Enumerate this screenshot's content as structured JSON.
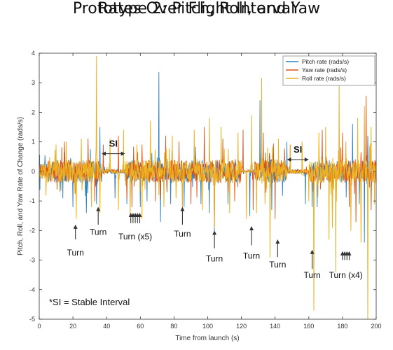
{
  "chart_data": {
    "type": "line",
    "title_line1": "Prototype 2: Pitch, Roll, and Yaw",
    "title_line2": "Rates Over Flight Interval",
    "xlabel": "Time from launch (s)",
    "ylabel": "Pitch, Roll, and Yaw Rate of Change (rads/s)",
    "xlim": [
      0,
      200
    ],
    "ylim": [
      -5,
      4
    ],
    "xticks": [
      0,
      20,
      40,
      60,
      80,
      100,
      120,
      140,
      160,
      180,
      200
    ],
    "yticks": [
      4,
      3,
      2,
      1,
      0,
      -1,
      -2,
      -3,
      -4,
      -5
    ],
    "legend_position": "top-right",
    "series": [
      {
        "name": "Pitch rate (rads/s)",
        "color": "#2f7fc1",
        "spikes": [
          [
            14,
            -0.9
          ],
          [
            20,
            -1.2
          ],
          [
            28,
            -1.4
          ],
          [
            34,
            -1.1
          ],
          [
            36,
            1.5
          ],
          [
            45,
            -0.9
          ],
          [
            52,
            -1.1
          ],
          [
            60,
            -1.2
          ],
          [
            64,
            -1.0
          ],
          [
            71,
            3.35
          ],
          [
            72,
            -1.7
          ],
          [
            78,
            -1.1
          ],
          [
            86,
            -1.2
          ],
          [
            96,
            -1.1
          ],
          [
            101,
            -1.4
          ],
          [
            104,
            -2.0
          ],
          [
            112,
            -1.1
          ],
          [
            125,
            -1.5
          ],
          [
            129,
            -1.0
          ],
          [
            131,
            2.4
          ],
          [
            138,
            -1.3
          ],
          [
            147,
            1.0
          ],
          [
            158,
            -1.1
          ],
          [
            162,
            -1.2
          ],
          [
            165,
            -1.2
          ],
          [
            176,
            -1.8
          ],
          [
            186,
            1.6
          ],
          [
            190,
            -1.1
          ],
          [
            193,
            -2.4
          ],
          [
            195,
            1.2
          ]
        ]
      },
      {
        "name": "Yaw rate (rads/s)",
        "color": "#d9541a",
        "spikes": [
          [
            15,
            1.0
          ],
          [
            22,
            -0.9
          ],
          [
            29,
            1.1
          ],
          [
            33,
            -1.0
          ],
          [
            38,
            0.9
          ],
          [
            47,
            1.2
          ],
          [
            55,
            -1.2
          ],
          [
            61,
            0.9
          ],
          [
            69,
            -1.0
          ],
          [
            75,
            1.2
          ],
          [
            83,
            1.0
          ],
          [
            90,
            -1.1
          ],
          [
            98,
            1.5
          ],
          [
            104,
            -1.9
          ],
          [
            109,
            1.1
          ],
          [
            116,
            -1.0
          ],
          [
            121,
            1.4
          ],
          [
            127,
            -1.3
          ],
          [
            133,
            1.3
          ],
          [
            140,
            -1.6
          ],
          [
            149,
            0.9
          ],
          [
            163,
            -1.3
          ],
          [
            168,
            1.4
          ],
          [
            174,
            -1.6
          ],
          [
            180,
            1.3
          ],
          [
            184,
            -1.2
          ],
          [
            188,
            -1.7
          ],
          [
            194,
            2.55
          ],
          [
            197,
            -1.3
          ]
        ]
      },
      {
        "name": "Roll rate (rads/s)",
        "color": "#edb120",
        "spikes": [
          [
            4,
            -0.8
          ],
          [
            10,
            0.9
          ],
          [
            12,
            -0.7
          ],
          [
            16,
            1.0
          ],
          [
            22,
            -1.6
          ],
          [
            25,
            1.1
          ],
          [
            31,
            -1.2
          ],
          [
            34,
            3.9
          ],
          [
            36,
            -1.4
          ],
          [
            42,
            1.1
          ],
          [
            47,
            -1.3
          ],
          [
            50,
            1.4
          ],
          [
            54,
            -1.5
          ],
          [
            58,
            0.9
          ],
          [
            61,
            -1.6
          ],
          [
            66,
            1.7
          ],
          [
            74,
            -1.2
          ],
          [
            79,
            1.2
          ],
          [
            85,
            -1.3
          ],
          [
            92,
            1.4
          ],
          [
            97,
            -1.3
          ],
          [
            101,
            1.8
          ],
          [
            104,
            -1.9
          ],
          [
            108,
            1.5
          ],
          [
            113,
            -1.4
          ],
          [
            118,
            1.3
          ],
          [
            123,
            -1.6
          ],
          [
            126,
            1.9
          ],
          [
            129,
            -1.4
          ],
          [
            132,
            3.15
          ],
          [
            134,
            -1.1
          ],
          [
            137,
            -2.9
          ],
          [
            142,
            1.1
          ],
          [
            149,
            0.9
          ],
          [
            156,
            1.0
          ],
          [
            160,
            -1.0
          ],
          [
            163,
            -4.7
          ],
          [
            166,
            1.3
          ],
          [
            170,
            1.5
          ],
          [
            172,
            -2.3
          ],
          [
            174,
            -1.9
          ],
          [
            176,
            -3.4
          ],
          [
            178,
            2.9
          ],
          [
            182,
            1.0
          ],
          [
            185,
            -2.0
          ],
          [
            189,
            1.8
          ],
          [
            191,
            -2.4
          ],
          [
            193,
            2.2
          ],
          [
            195,
            -5.0
          ],
          [
            197,
            1.5
          ],
          [
            199,
            -1.1
          ]
        ]
      }
    ],
    "annotations": [
      {
        "text": "Turn",
        "x": 21.5,
        "arrow_tip": -1.8,
        "arrow_base": -2.3,
        "label_y": -2.85
      },
      {
        "text": "Turn",
        "x": 35,
        "arrow_tip": -1.2,
        "arrow_base": -1.8,
        "label_y": -2.15
      },
      {
        "text": "Turn (x5)",
        "x": 57,
        "arrow_tip": -1.4,
        "arrow_base": -1.75,
        "label_y": -2.3,
        "arrows": 5
      },
      {
        "text": "Turn",
        "x": 85,
        "arrow_tip": -1.2,
        "arrow_base": -1.8,
        "label_y": -2.2
      },
      {
        "text": "Turn",
        "x": 104,
        "arrow_tip": -2.0,
        "arrow_base": -2.6,
        "label_y": -3.05
      },
      {
        "text": "Turn",
        "x": 126,
        "arrow_tip": -1.85,
        "arrow_base": -2.5,
        "label_y": -2.95
      },
      {
        "text": "Turn",
        "x": 141.5,
        "arrow_tip": -2.3,
        "arrow_base": -2.9,
        "label_y": -3.25
      },
      {
        "text": "Turn",
        "x": 162,
        "arrow_tip": -2.65,
        "arrow_base": -3.3,
        "label_y": -3.6
      },
      {
        "text": "Turn (x4)",
        "x": 182,
        "arrow_tip": -2.7,
        "arrow_base": -3.0,
        "label_y": -3.6,
        "arrows": 4
      }
    ],
    "stable_intervals": [
      {
        "label": "SI",
        "x_start": 37,
        "x_end": 51,
        "y": 0.6
      },
      {
        "label": "SI",
        "x_start": 147,
        "x_end": 160,
        "y": 0.4
      }
    ],
    "note": "*SI = Stable Interval"
  }
}
